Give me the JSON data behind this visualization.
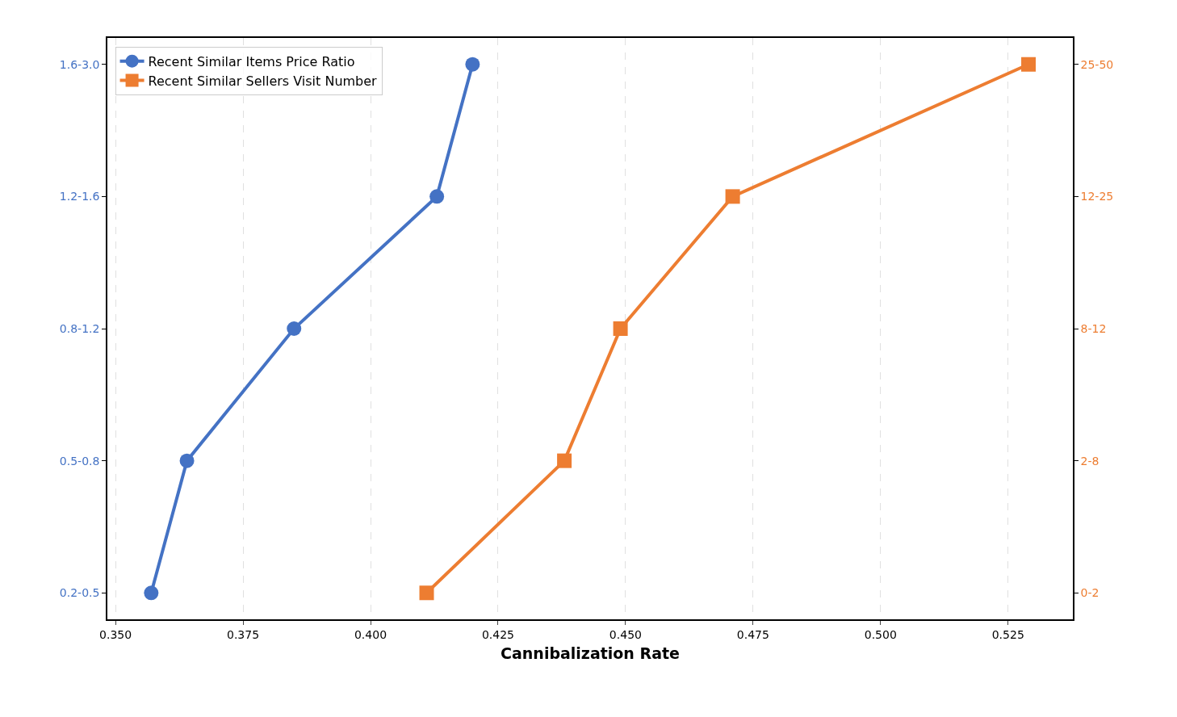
{
  "chart_data": {
    "type": "line",
    "orientation": "horizontal",
    "xlabel": "Cannibalization Rate",
    "y_categories": [
      "1.6-3.0",
      "1.2-1.6",
      "0.8-1.2",
      "0.5-0.8",
      "0.2-0.5"
    ],
    "y2_categories": [
      "25-50",
      "12-25",
      "8-12",
      "2-8",
      "0-2"
    ],
    "series": [
      {
        "name": "Recent Similar Items Price Ratio",
        "color": "#4472c4",
        "marker": "circle",
        "values": [
          0.42,
          0.413,
          0.385,
          0.364,
          0.357
        ]
      },
      {
        "name": "Recent Similar Sellers Visit Number",
        "color": "#ed7d31",
        "marker": "square",
        "axis": "y2",
        "values": [
          0.529,
          0.471,
          0.449,
          0.438,
          0.411
        ]
      }
    ],
    "xlim": [
      0.3484,
      0.5377
    ],
    "xticks": [
      {
        "value": 0.35,
        "label": "0.350"
      },
      {
        "value": 0.375,
        "label": "0.375"
      },
      {
        "value": 0.4,
        "label": "0.400"
      },
      {
        "value": 0.425,
        "label": "0.425"
      },
      {
        "value": 0.45,
        "label": "0.450"
      },
      {
        "value": 0.475,
        "label": "0.475"
      },
      {
        "value": 0.5,
        "label": "0.500"
      },
      {
        "value": 0.525,
        "label": "0.525"
      }
    ],
    "grid": "x",
    "legend": "top left",
    "line_style": "solid"
  }
}
